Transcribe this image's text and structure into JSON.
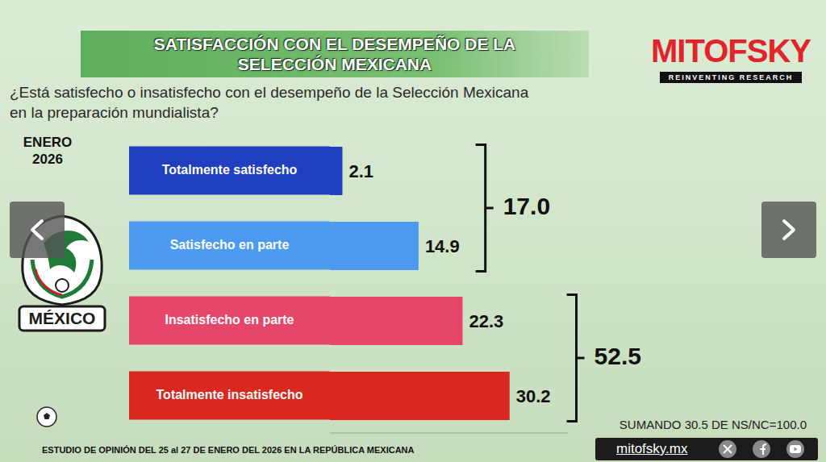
{
  "chart_data": {
    "type": "bar",
    "orientation": "horizontal",
    "title": "SATISFACCIÓN CON EL DESEMPEÑO DE LA SELECCIÓN MEXICANA",
    "subtitle": "¿Está satisfecho o insatisfecho con el desempeño de la Selección Mexicana en la preparación mundialista?",
    "period": "ENERO 2026",
    "categories": [
      "Totalmente satisfecho",
      "Satisfecho en parte",
      "Insatisfecho en parte",
      "Totalmente insatisfecho"
    ],
    "values": [
      2.1,
      14.9,
      22.3,
      30.2
    ],
    "colors": [
      "#1f3fbf",
      "#4d9bf0",
      "#e5476b",
      "#d8281f"
    ],
    "xlim": [
      0,
      40
    ],
    "tick_labels": false,
    "grid": false,
    "data_labels": true,
    "groups": [
      {
        "categories": [
          "Totalmente satisfecho",
          "Satisfecho en parte"
        ],
        "value": 17.0,
        "label": "17.0"
      },
      {
        "categories": [
          "Insatisfecho en parte",
          "Totalmente insatisfecho"
        ],
        "value": 52.5,
        "label": "52.5"
      }
    ],
    "note": "SUMANDO 30.5 DE NS/NC=100.0",
    "source": "ESTUDIO DE OPINIÓN DEL 25 al 27 DE ENERO DEL 2026 EN LA REPÚBLICA MEXICANA",
    "brand": "MITOFSKY",
    "brand_tagline": "REINVENTING RESEARCH",
    "emblem_text": "MÉXICO",
    "website": "mitofsky.mx"
  }
}
